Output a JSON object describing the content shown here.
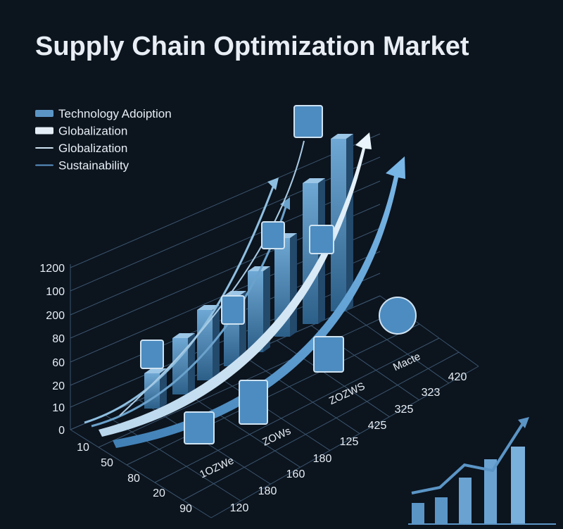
{
  "title": "Supply Chain Optimization Market",
  "legend": [
    "Technology Adoiption",
    "Globalization",
    "Globalization",
    "Sustainability"
  ],
  "y_axis_labels": [
    "1200",
    "100",
    "200",
    "80",
    "60",
    "20",
    "10",
    "0"
  ],
  "left_axis_labels": [
    "10",
    "50",
    "80",
    "20",
    "90"
  ],
  "right_axis_labels": [
    "120",
    "180",
    "160",
    "180",
    "125",
    "425",
    "325",
    "323",
    "420"
  ],
  "floor_labels": [
    "1OZWe",
    "ZOWs",
    "ZOZWS",
    "Macte"
  ]
}
